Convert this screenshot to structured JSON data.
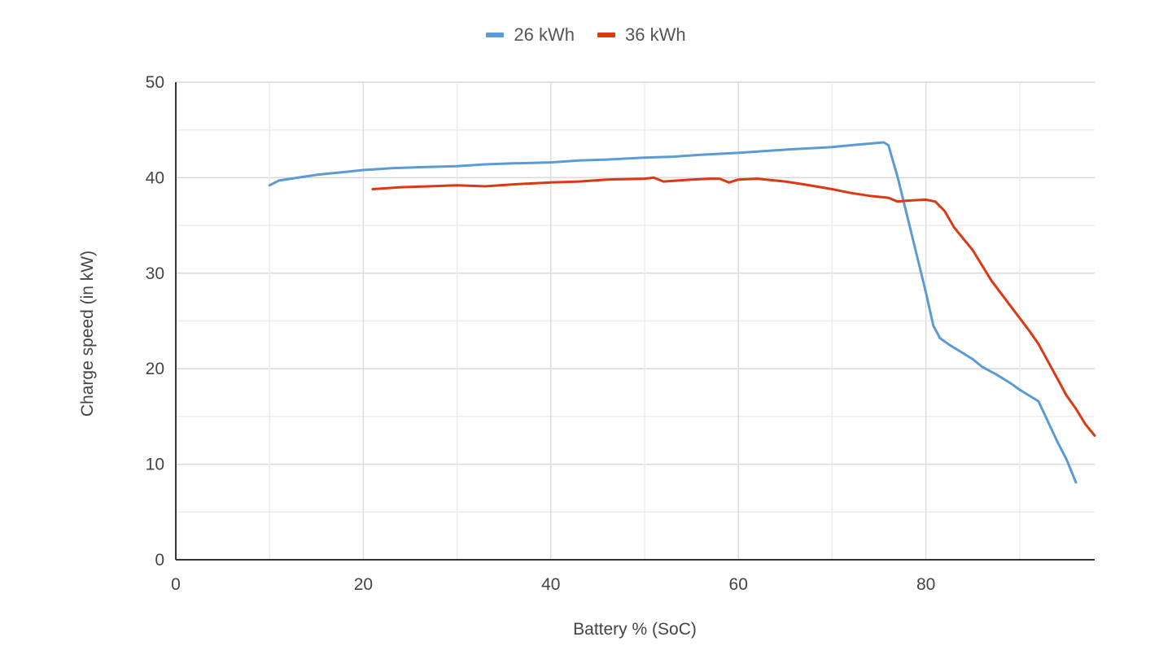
{
  "chart_data": {
    "type": "line",
    "title": "",
    "xlabel": "Battery % (SoC)",
    "ylabel": "Charge speed (in kW)",
    "xlim": [
      0,
      98
    ],
    "ylim": [
      0,
      50
    ],
    "x_ticks": [
      0,
      20,
      40,
      60,
      80
    ],
    "y_ticks": [
      0,
      10,
      20,
      30,
      40,
      50
    ],
    "grid": true,
    "legend_position": "top",
    "series": [
      {
        "name": "26 kWh",
        "color": "#5b9bd5",
        "x": [
          10,
          11,
          13,
          15,
          18,
          20,
          23,
          26,
          30,
          33,
          36,
          40,
          43,
          46,
          50,
          53,
          56,
          60,
          63,
          66,
          70,
          72,
          75.5,
          76,
          77,
          78,
          79,
          80,
          80.8,
          81.5,
          82.5,
          84,
          85,
          86,
          87.5,
          89,
          90,
          91,
          92,
          93,
          94,
          95,
          96
        ],
        "y": [
          39.2,
          39.7,
          40.0,
          40.3,
          40.6,
          40.8,
          41.0,
          41.1,
          41.2,
          41.4,
          41.5,
          41.6,
          41.8,
          41.9,
          42.1,
          42.2,
          42.4,
          42.6,
          42.8,
          43.0,
          43.2,
          43.4,
          43.7,
          43.4,
          40.0,
          36.0,
          32.0,
          28.0,
          24.5,
          23.2,
          22.5,
          21.6,
          21.0,
          20.2,
          19.4,
          18.5,
          17.8,
          17.2,
          16.6,
          14.5,
          12.4,
          10.5,
          8.1
        ]
      },
      {
        "name": "36 kWh",
        "color": "#dc3912",
        "x": [
          21,
          24,
          27,
          30,
          33,
          36,
          40,
          43,
          46,
          50,
          51,
          52,
          55,
          57,
          58,
          59,
          60,
          62,
          65,
          67,
          70,
          72,
          74,
          76,
          77,
          78,
          80,
          81,
          82,
          83,
          85,
          87,
          89,
          91,
          92,
          93,
          94,
          95,
          96,
          97,
          98
        ],
        "y": [
          38.8,
          39.0,
          39.1,
          39.2,
          39.1,
          39.3,
          39.5,
          39.6,
          39.8,
          39.9,
          40.0,
          39.6,
          39.8,
          39.9,
          39.9,
          39.5,
          39.8,
          39.9,
          39.6,
          39.3,
          38.8,
          38.4,
          38.1,
          37.9,
          37.5,
          37.6,
          37.7,
          37.5,
          36.5,
          34.8,
          32.4,
          29.2,
          26.6,
          24.0,
          22.6,
          20.8,
          19.0,
          17.2,
          15.8,
          14.2,
          13.0
        ]
      }
    ]
  },
  "legend": {
    "items": [
      {
        "label": "26 kWh",
        "color": "#5b9bd5"
      },
      {
        "label": "36 kWh",
        "color": "#dc3912"
      }
    ]
  }
}
